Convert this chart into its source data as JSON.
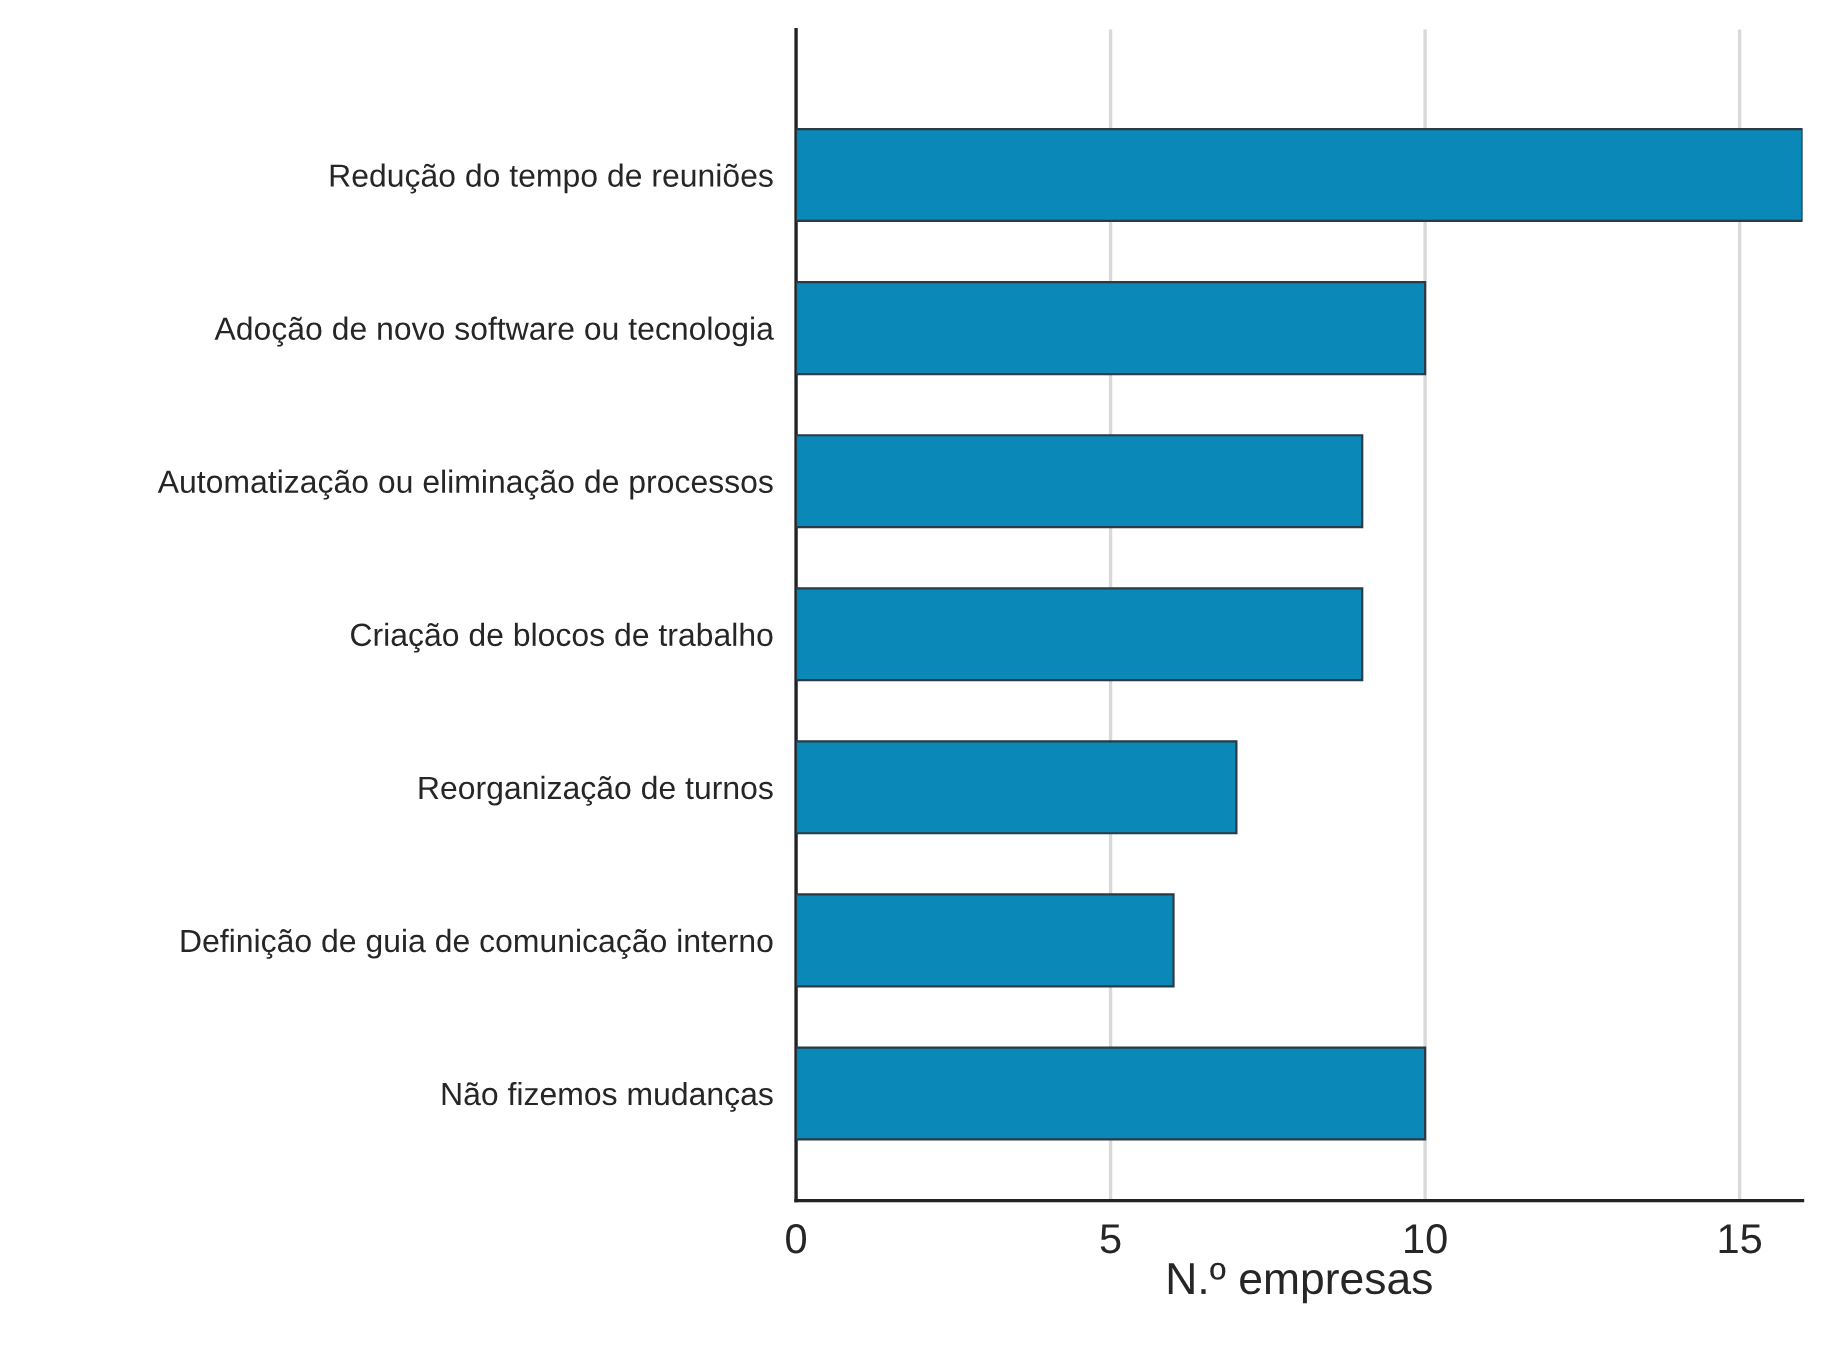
{
  "chart_data": {
    "type": "bar",
    "orientation": "horizontal",
    "categories": [
      "Redução do tempo de reuniões",
      "Adoção de novo software ou tecnologia",
      "Automatização ou eliminação de processos",
      "Criação de blocos de trabalho",
      "Reorganização de turnos",
      "Definição de guia de comunicação interno",
      "Não fizemos mudanças"
    ],
    "values": [
      16,
      10,
      9,
      9,
      7,
      6,
      10
    ],
    "color": "#0a89b9",
    "xlabel": "N.º empresas",
    "xlim": [
      0,
      16
    ],
    "xticks": [
      0,
      5,
      10,
      15
    ],
    "grid": "x",
    "legend": false
  }
}
